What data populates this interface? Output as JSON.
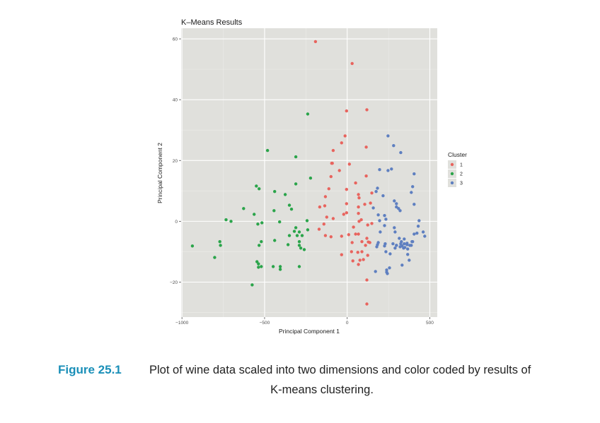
{
  "chart_data": {
    "type": "scatter",
    "title": "K–Means Results",
    "xlabel": "Principal Component 1",
    "ylabel": "Principal Component 2",
    "xlim": [
      -1005,
      545
    ],
    "ylim": [
      -31.5,
      63.5
    ],
    "xticks": [
      -1000,
      -500,
      0,
      500
    ],
    "xtick_labels": [
      "−1000",
      "−500",
      "0",
      "500"
    ],
    "yticks": [
      -20,
      0,
      20,
      40,
      60
    ],
    "ytick_labels": [
      "−20",
      "0",
      "20",
      "40",
      "60"
    ],
    "grid": true,
    "legend": {
      "title": "Cluster",
      "position": "right",
      "entries": [
        "1",
        "2",
        "3"
      ]
    },
    "series": [
      {
        "name": "1",
        "color": "#e8645e",
        "points": [
          [
            -192,
            59.1
          ],
          [
            30,
            51.9
          ],
          [
            -4,
            36.3
          ],
          [
            119,
            36.7
          ],
          [
            -13,
            28.1
          ],
          [
            -34,
            25.8
          ],
          [
            -85,
            23.3
          ],
          [
            115,
            24.4
          ],
          [
            -94,
            19.1
          ],
          [
            -90,
            19.1
          ],
          [
            13,
            18.8
          ],
          [
            -47,
            16.7
          ],
          [
            -98,
            14.7
          ],
          [
            115,
            14.9
          ],
          [
            51,
            12.6
          ],
          [
            -111,
            10.7
          ],
          [
            -4,
            10.5
          ],
          [
            -132,
            8.1
          ],
          [
            68,
            8.8
          ],
          [
            72,
            7.7
          ],
          [
            149,
            9.3
          ],
          [
            -4,
            5.8
          ],
          [
            -166,
            4.7
          ],
          [
            -136,
            5.1
          ],
          [
            68,
            4.7
          ],
          [
            106,
            5.6
          ],
          [
            141,
            6.0
          ],
          [
            -124,
            1.4
          ],
          [
            -85,
            0.9
          ],
          [
            -21,
            2.3
          ],
          [
            -4,
            2.8
          ],
          [
            68,
            2.6
          ],
          [
            72,
            0.0
          ],
          [
            85,
            0.5
          ],
          [
            124,
            -1.2
          ],
          [
            149,
            -0.7
          ],
          [
            -141,
            -0.9
          ],
          [
            -170,
            -2.6
          ],
          [
            38,
            -1.9
          ],
          [
            -132,
            -4.7
          ],
          [
            -98,
            -5.1
          ],
          [
            9,
            -4.4
          ],
          [
            51,
            -4.2
          ],
          [
            68,
            -4.2
          ],
          [
            119,
            -5.6
          ],
          [
            30,
            -7.0
          ],
          [
            -34,
            -4.9
          ],
          [
            89,
            -6.7
          ],
          [
            128,
            -6.8
          ],
          [
            111,
            -7.9
          ],
          [
            137,
            -7.0
          ],
          [
            -34,
            -11.0
          ],
          [
            26,
            -10.0
          ],
          [
            64,
            -10.2
          ],
          [
            89,
            -10.0
          ],
          [
            124,
            -11.2
          ],
          [
            34,
            -13.0
          ],
          [
            77,
            -12.8
          ],
          [
            98,
            -12.6
          ],
          [
            68,
            -14.2
          ],
          [
            119,
            -19.3
          ],
          [
            119,
            -27.2
          ]
        ]
      },
      {
        "name": "2",
        "color": "#2aa44a",
        "points": [
          [
            -482,
            23.3
          ],
          [
            -311,
            21.2
          ],
          [
            -239,
            35.3
          ],
          [
            -550,
            11.6
          ],
          [
            -533,
            10.7
          ],
          [
            -222,
            14.2
          ],
          [
            -439,
            9.8
          ],
          [
            -375,
            8.8
          ],
          [
            -311,
            12.3
          ],
          [
            -350,
            5.3
          ],
          [
            -337,
            4.0
          ],
          [
            -627,
            4.2
          ],
          [
            -563,
            2.3
          ],
          [
            -443,
            3.5
          ],
          [
            -409,
            -0.2
          ],
          [
            -733,
            0.5
          ],
          [
            -703,
            0.0
          ],
          [
            -541,
            -0.9
          ],
          [
            -516,
            -0.5
          ],
          [
            -243,
            0.2
          ],
          [
            -239,
            -2.8
          ],
          [
            -311,
            -2.1
          ],
          [
            -320,
            -3.3
          ],
          [
            -290,
            -3.5
          ],
          [
            -350,
            -4.7
          ],
          [
            -303,
            -4.7
          ],
          [
            -273,
            -4.7
          ],
          [
            -439,
            -6.3
          ],
          [
            -290,
            -6.7
          ],
          [
            -358,
            -7.7
          ],
          [
            -290,
            -7.9
          ],
          [
            -281,
            -8.8
          ],
          [
            -260,
            -9.3
          ],
          [
            -771,
            -6.7
          ],
          [
            -767,
            -7.9
          ],
          [
            -937,
            -8.1
          ],
          [
            -520,
            -6.7
          ],
          [
            -533,
            -7.9
          ],
          [
            -802,
            -11.9
          ],
          [
            -546,
            -13.3
          ],
          [
            -537,
            -14.0
          ],
          [
            -520,
            -14.9
          ],
          [
            -537,
            -15.1
          ],
          [
            -448,
            -14.9
          ],
          [
            -405,
            -14.9
          ],
          [
            -405,
            -15.8
          ],
          [
            -290,
            -14.9
          ],
          [
            -575,
            -20.9
          ]
        ]
      },
      {
        "name": "3",
        "color": "#5e7fc0",
        "points": [
          [
            247,
            28.1
          ],
          [
            281,
            24.9
          ],
          [
            324,
            22.6
          ],
          [
            196,
            17.0
          ],
          [
            247,
            16.7
          ],
          [
            268,
            17.2
          ],
          [
            405,
            15.6
          ],
          [
            396,
            11.4
          ],
          [
            388,
            9.5
          ],
          [
            183,
            10.9
          ],
          [
            175,
            9.8
          ],
          [
            217,
            8.4
          ],
          [
            285,
            6.7
          ],
          [
            298,
            5.8
          ],
          [
            298,
            4.7
          ],
          [
            311,
            4.2
          ],
          [
            320,
            3.5
          ],
          [
            405,
            5.6
          ],
          [
            158,
            4.4
          ],
          [
            188,
            2.1
          ],
          [
            226,
            1.9
          ],
          [
            234,
            0.7
          ],
          [
            196,
            0.2
          ],
          [
            226,
            -1.4
          ],
          [
            200,
            -3.5
          ],
          [
            285,
            -2.1
          ],
          [
            290,
            -3.5
          ],
          [
            435,
            0.2
          ],
          [
            430,
            -1.6
          ],
          [
            460,
            -3.5
          ],
          [
            469,
            -4.9
          ],
          [
            405,
            -4.2
          ],
          [
            422,
            -3.9
          ],
          [
            396,
            -6.7
          ],
          [
            315,
            -5.6
          ],
          [
            345,
            -5.8
          ],
          [
            328,
            -6.7
          ],
          [
            345,
            -7.4
          ],
          [
            362,
            -7.2
          ],
          [
            362,
            -7.7
          ],
          [
            332,
            -8.1
          ],
          [
            366,
            -9.1
          ],
          [
            349,
            -8.6
          ],
          [
            298,
            -7.9
          ],
          [
            341,
            -8.8
          ],
          [
            183,
            -7.7
          ],
          [
            179,
            -8.4
          ],
          [
            188,
            -7.0
          ],
          [
            230,
            -7.4
          ],
          [
            226,
            -8.1
          ],
          [
            277,
            -7.4
          ],
          [
            298,
            -7.9
          ],
          [
            290,
            -8.8
          ],
          [
            324,
            -7.4
          ],
          [
            320,
            -8.4
          ],
          [
            379,
            -7.9
          ],
          [
            392,
            -6.7
          ],
          [
            388,
            -7.9
          ],
          [
            234,
            -10.0
          ],
          [
            260,
            -10.7
          ],
          [
            366,
            -10.9
          ],
          [
            375,
            -12.8
          ],
          [
            332,
            -14.4
          ],
          [
            256,
            -15.3
          ],
          [
            239,
            -16.0
          ],
          [
            239,
            -16.7
          ],
          [
            243,
            -17.2
          ],
          [
            171,
            -16.5
          ]
        ]
      }
    ]
  },
  "caption": {
    "figure_label": "Figure 25.1",
    "line1": "Plot of wine data scaled into two dimensions and color coded by results of",
    "line2": "K-means clustering."
  }
}
